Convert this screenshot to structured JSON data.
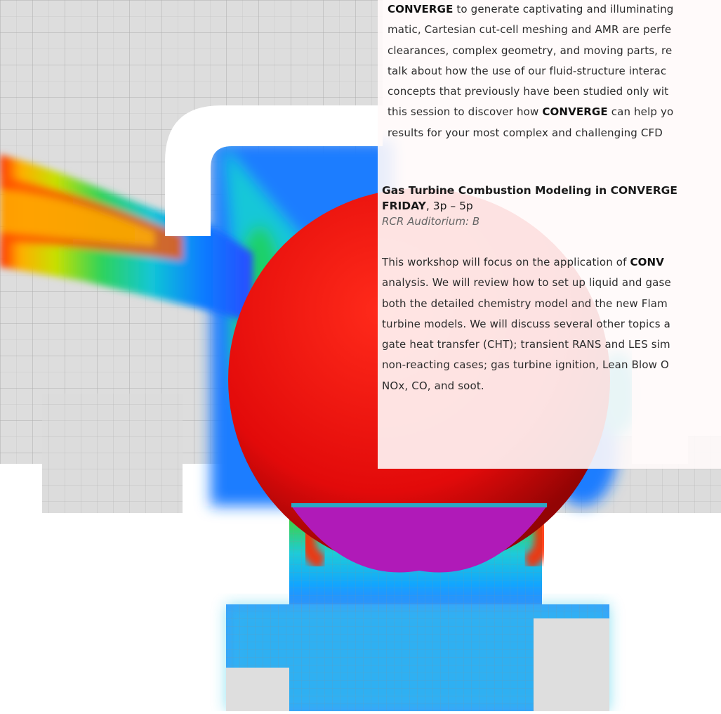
{
  "intro": {
    "lines": [
      [
        "CONVERGE",
        " to generate captivating and illuminating"
      ],
      [
        "",
        "matic, Cartesian cut-cell meshing and AMR are perfe"
      ],
      [
        "",
        "clearances, complex geometry, and moving parts, re"
      ],
      [
        "",
        "talk about how the use of our fluid-structure interac"
      ],
      [
        "",
        "concepts that previously have been studied only wit"
      ],
      [
        "",
        "this session to discover how "
      ],
      [
        "",
        "results for your most complex and challenging CFD"
      ]
    ],
    "line6_bold": "CONVERGE",
    "line6_tail": " can help yo"
  },
  "session": {
    "title": "Gas Turbine Combustion Modeling in CONVERGE",
    "day": "FRIDAY",
    "time": ", 3p – 5p",
    "room": "RCR Auditorium: B"
  },
  "body": {
    "line1_start": "This workshop will focus on the application of ",
    "line1_bold": "CONV",
    "lines": [
      "analysis. We will review how to set up liquid and gase",
      "both the detailed chemistry model and the new Flam",
      "turbine models. We will discuss several other topics a",
      "gate heat transfer (CHT); transient RANS and LES sim",
      "non-reacting cases; gas turbine ignition, Lean Blow O",
      "NOx, CO, and soot."
    ]
  },
  "colors": {
    "sphere": "#ee1111",
    "sphere_bottom": "#b01ab8",
    "background": "#ffffff",
    "mesh": "#d4d4d4"
  }
}
